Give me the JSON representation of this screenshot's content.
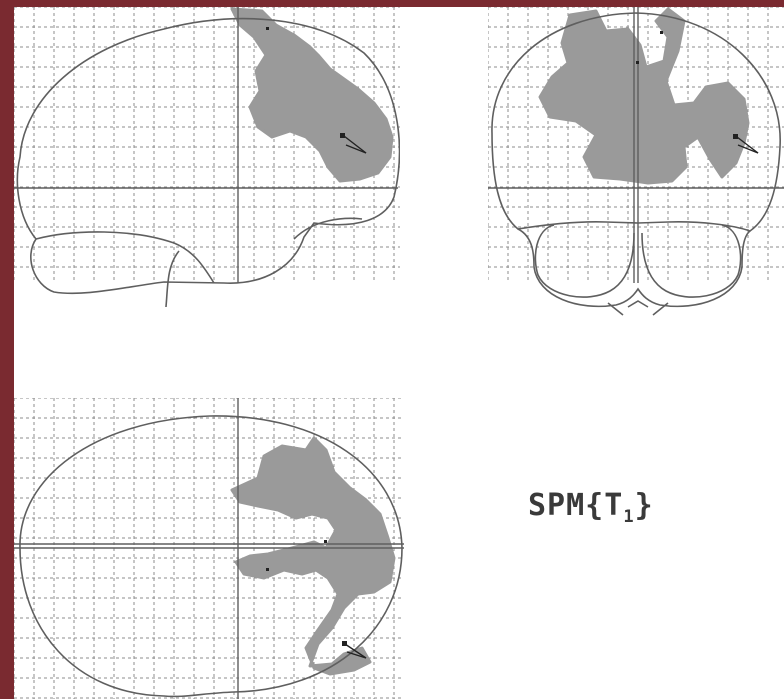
{
  "colors": {
    "frame": "#7a2a30",
    "grid": "#8c8c8c",
    "outline": "#5f5f5f",
    "activation": "#9a9a9a",
    "peak": "#222222"
  },
  "views": [
    {
      "name": "sagittal",
      "w": 386,
      "h": 300
    },
    {
      "name": "coronal",
      "w": 296,
      "h": 310
    },
    {
      "name": "axial",
      "w": 390,
      "h": 301
    }
  ],
  "label": {
    "prefix": "SPM{T",
    "subscript": "1",
    "suffix": "}"
  }
}
